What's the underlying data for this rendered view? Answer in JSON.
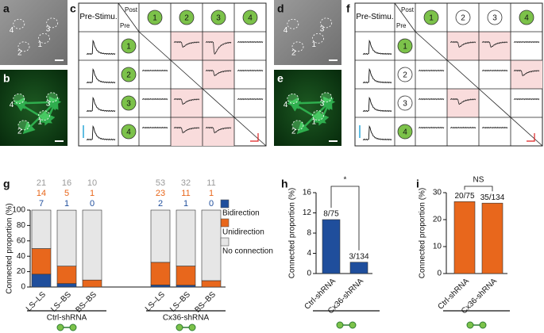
{
  "panels": {
    "labels": [
      "a",
      "b",
      "c",
      "d",
      "e",
      "f",
      "g",
      "h",
      "i"
    ]
  },
  "images": [
    {
      "labels": [
        "4",
        "3",
        "1",
        "2"
      ]
    },
    {
      "labels": [
        "4",
        "3",
        "1",
        "2"
      ]
    },
    {
      "labels": [
        "4",
        "3",
        "1",
        "2"
      ]
    },
    {
      "labels": [
        "4",
        "3",
        "1",
        "2"
      ]
    }
  ],
  "matrices": [
    {
      "corner": "Pre-Stimu.",
      "post": "Post",
      "pre": "Pre",
      "columns": [
        "1",
        "2",
        "3",
        "4"
      ],
      "rows": [
        "1",
        "2",
        "3",
        "4"
      ],
      "filled": [
        true,
        true,
        true,
        true
      ],
      "fill_color": "#7cc24a",
      "highlight_color": "#f9dcdc",
      "highlighted": [
        [
          0,
          1
        ],
        [
          0,
          2
        ],
        [
          1,
          2
        ],
        [
          2,
          1
        ],
        [
          3,
          1
        ],
        [
          3,
          2
        ]
      ]
    },
    {
      "corner": "Pre-Stimu.",
      "post": "Post",
      "pre": "Pre",
      "columns": [
        "1",
        "2",
        "3",
        "4"
      ],
      "rows": [
        "1",
        "2",
        "3",
        "4"
      ],
      "filled": [
        true,
        false,
        false,
        true
      ],
      "fill_color": "#7cc24a",
      "highlight_color": "#f9dcdc",
      "highlighted": [
        [
          0,
          1
        ],
        [
          0,
          2
        ],
        [
          1,
          3
        ],
        [
          2,
          1
        ]
      ]
    }
  ],
  "chart_data": [
    {
      "type": "stacked_bar",
      "ylabel": "Connected proportion (%)",
      "categories": [
        "LS–LS",
        "LS–BS",
        "BS–BS",
        "LS–LS",
        "LS–BS",
        "BS–BS"
      ],
      "groups": [
        "Ctrl-shRNA",
        "Cx36-shRNA"
      ],
      "series": [
        {
          "name": "Bidirection",
          "color": "#1f4e9c",
          "values": [
            16.7,
            4.5,
            0,
            2.6,
            2.3,
            0
          ],
          "counts": [
            7,
            1,
            0,
            2,
            1,
            0
          ]
        },
        {
          "name": "Unidirection",
          "color": "#e8671c",
          "values": [
            33.3,
            22.7,
            9.1,
            29.5,
            25.0,
            8.3
          ],
          "counts": [
            14,
            5,
            1,
            23,
            11,
            1
          ]
        },
        {
          "name": "No connection",
          "color": "#e6e6e6",
          "label_color": "#9a9a9a",
          "values": [
            50.0,
            72.7,
            90.9,
            67.9,
            72.7,
            91.7
          ],
          "counts": [
            21,
            16,
            10,
            53,
            32,
            11
          ]
        }
      ],
      "ylim": [
        0,
        100
      ],
      "yticks": [
        0,
        20,
        40,
        60,
        80,
        100
      ]
    },
    {
      "type": "bar",
      "ylabel": "Connected proportion (%)",
      "categories": [
        "Ctrl-shRNA",
        "Cx36-shRNA"
      ],
      "values": [
        10.67,
        2.24
      ],
      "value_labels": [
        "8/75",
        "3/134"
      ],
      "color": "#1f4e9c",
      "ylim": [
        0,
        16
      ],
      "yticks": [
        0,
        4,
        8,
        12,
        16
      ],
      "significance": "*"
    },
    {
      "type": "bar",
      "ylabel": "Connected proportion (%)",
      "categories": [
        "Ctrl-shRNA",
        "Cx36-shRNA"
      ],
      "values": [
        26.67,
        26.12
      ],
      "value_labels": [
        "20/75",
        "35/134"
      ],
      "color": "#e8671c",
      "ylim": [
        0,
        30
      ],
      "yticks": [
        0,
        10,
        20,
        30
      ],
      "significance": "NS"
    }
  ]
}
